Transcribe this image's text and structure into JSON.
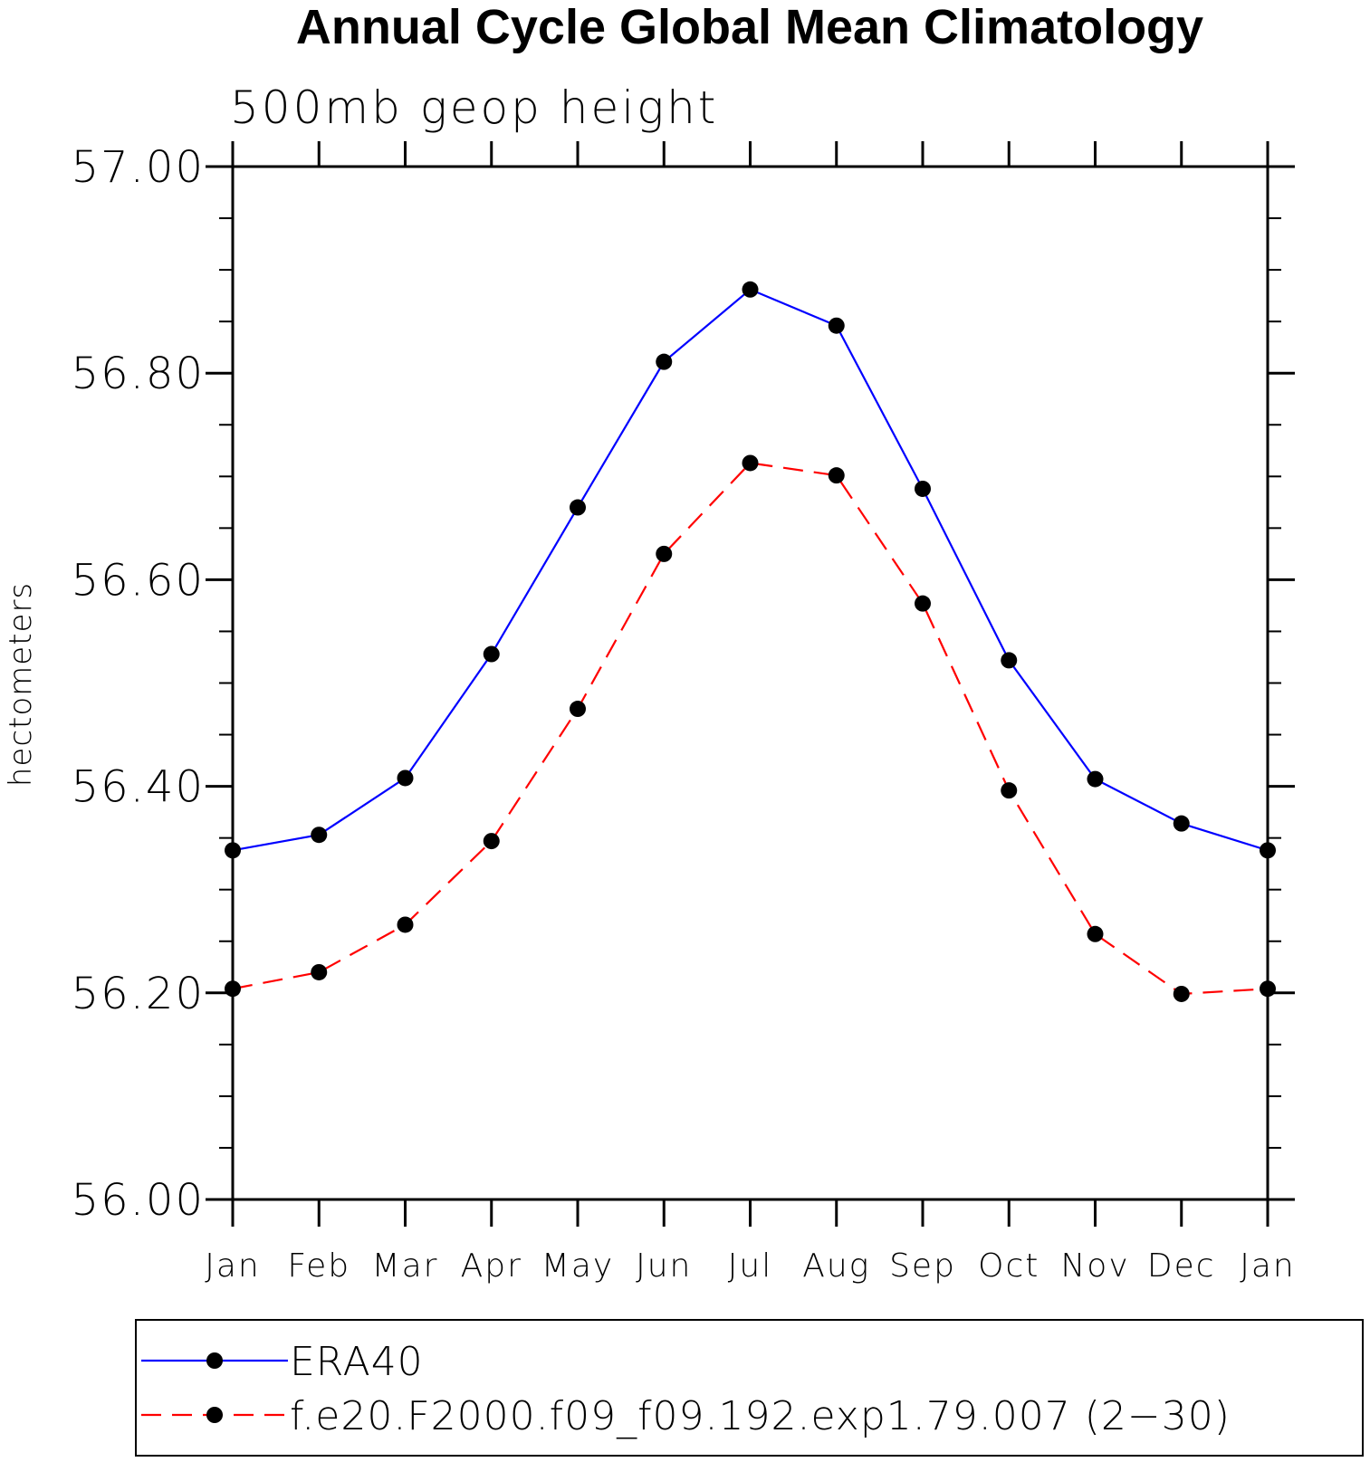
{
  "chart_data": {
    "type": "line",
    "title": "Annual Cycle Global Mean Climatology",
    "subtitle": "500mb geop height",
    "ylabel": "hectometers",
    "xlabel": "",
    "categories": [
      "Jan",
      "Feb",
      "Mar",
      "Apr",
      "May",
      "Jun",
      "Jul",
      "Aug",
      "Sep",
      "Oct",
      "Nov",
      "Dec",
      "Jan"
    ],
    "ylim": [
      56.0,
      57.0
    ],
    "yticks": [
      "56.00",
      "56.20",
      "56.40",
      "56.60",
      "56.80",
      "57.00"
    ],
    "yminor_step": 0.05,
    "legend_position": "bottom",
    "series": [
      {
        "name": "ERA40",
        "color": "#0000ff",
        "dash": "solid",
        "marker": "filled-circle",
        "values": [
          56.338,
          56.353,
          56.408,
          56.528,
          56.67,
          56.811,
          56.881,
          56.846,
          56.688,
          56.522,
          56.407,
          56.364,
          56.338
        ]
      },
      {
        "name": "f.e20.F2000.f09_f09.192.exp1.79.007 (2−30)",
        "color": "#ff0000",
        "dash": "dashed",
        "marker": "filled-circle",
        "values": [
          56.204,
          56.22,
          56.266,
          56.347,
          56.475,
          56.625,
          56.713,
          56.701,
          56.577,
          56.396,
          56.257,
          56.199,
          56.204
        ]
      }
    ]
  }
}
